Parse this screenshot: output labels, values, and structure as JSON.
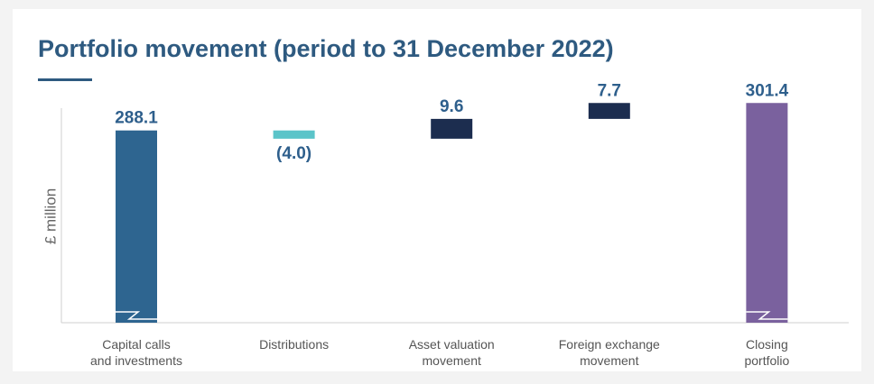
{
  "chart_data": {
    "type": "waterfall",
    "title": "Portfolio movement (period to 31 December 2022)",
    "y_label": "£ million",
    "categories": [
      [
        "Capital calls",
        "and investments"
      ],
      [
        "Distributions"
      ],
      [
        "Asset valuation",
        "movement"
      ],
      [
        "Foreign exchange",
        "movement"
      ],
      [
        "Closing",
        "portfolio"
      ]
    ],
    "values": [
      288.1,
      -4.0,
      9.6,
      7.7,
      301.4
    ],
    "value_labels": [
      "288.1",
      "(4.0)",
      "9.6",
      "7.7",
      "301.4"
    ],
    "measures": [
      "total",
      "relative",
      "relative",
      "relative",
      "total"
    ],
    "colors": [
      "#2e6590",
      "#5bc4c9",
      "#1c2d4f",
      "#1c2d4f",
      "#7a619e"
    ],
    "ylim": [
      195,
      305
    ],
    "axis_break": true
  }
}
